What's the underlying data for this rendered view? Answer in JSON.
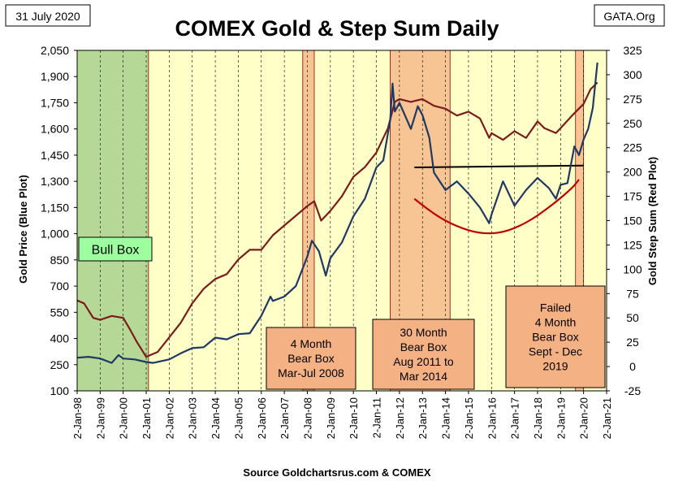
{
  "date_label": "31 July 2020",
  "site_label": "GATA.Org",
  "source_label": "Source Goldchartsrus.com & COMEX",
  "chart_data": {
    "type": "line",
    "title": "COMEX Gold & Step Sum Daily",
    "x_range": [
      1998.0,
      2021.0
    ],
    "x_ticks": [
      {
        "label": "2-Jan-98",
        "value": 1998
      },
      {
        "label": "2-Jan-99",
        "value": 1999
      },
      {
        "label": "2-Jan-00",
        "value": 2000
      },
      {
        "label": "2-Jan-01",
        "value": 2001
      },
      {
        "label": "2-Jan-02",
        "value": 2002
      },
      {
        "label": "2-Jan-03",
        "value": 2003
      },
      {
        "label": "2-Jan-04",
        "value": 2004
      },
      {
        "label": "2-Jan-05",
        "value": 2005
      },
      {
        "label": "2-Jan-06",
        "value": 2006
      },
      {
        "label": "2-Jan-07",
        "value": 2007
      },
      {
        "label": "2-Jan-08",
        "value": 2008
      },
      {
        "label": "2-Jan-09",
        "value": 2009
      },
      {
        "label": "2-Jan-10",
        "value": 2010
      },
      {
        "label": "2-Jan-11",
        "value": 2011
      },
      {
        "label": "2-Jan-12",
        "value": 2012
      },
      {
        "label": "2-Jan-13",
        "value": 2013
      },
      {
        "label": "2-Jan-14",
        "value": 2014
      },
      {
        "label": "2-Jan-15",
        "value": 2015
      },
      {
        "label": "2-Jan-16",
        "value": 2016
      },
      {
        "label": "2-Jan-17",
        "value": 2017
      },
      {
        "label": "2-Jan-18",
        "value": 2018
      },
      {
        "label": "2-Jan-19",
        "value": 2019
      },
      {
        "label": "2-Jan-20",
        "value": 2020
      },
      {
        "label": "2-Jan-21",
        "value": 2021
      }
    ],
    "y_left": {
      "label": "Gold Price    (Blue Plot)",
      "range": [
        100,
        2050
      ],
      "ticks": [
        "100",
        "250",
        "400",
        "550",
        "700",
        "850",
        "1,000",
        "1,150",
        "1,300",
        "1,450",
        "1,600",
        "1,750",
        "1,900",
        "2,050"
      ],
      "tick_values": [
        100,
        250,
        400,
        550,
        700,
        850,
        1000,
        1150,
        1300,
        1450,
        1600,
        1750,
        1900,
        2050
      ]
    },
    "y_right": {
      "label": "Gold Step Sum    (Red Plot)",
      "range": [
        -25,
        325
      ],
      "ticks": [
        "-25",
        "0",
        "25",
        "50",
        "75",
        "100",
        "125",
        "150",
        "175",
        "200",
        "225",
        "250",
        "275",
        "300",
        "325"
      ],
      "tick_values": [
        -25,
        0,
        25,
        50,
        75,
        100,
        125,
        150,
        175,
        200,
        225,
        250,
        275,
        300,
        325
      ]
    },
    "series": [
      {
        "name": "Gold Price",
        "axis": "left",
        "color": "#1f3864",
        "x": [
          1998.0,
          1998.5,
          1999.0,
          1999.5,
          1999.8,
          2000.0,
          2000.5,
          2001.0,
          2001.3,
          2002.0,
          2002.5,
          2003.0,
          2003.5,
          2004.0,
          2004.5,
          2005.0,
          2005.5,
          2006.0,
          2006.4,
          2006.5,
          2007.0,
          2007.5,
          2008.0,
          2008.2,
          2008.5,
          2008.8,
          2009.0,
          2009.5,
          2010.0,
          2010.5,
          2011.0,
          2011.3,
          2011.6,
          2011.7,
          2011.8,
          2012.0,
          2012.5,
          2012.8,
          2013.0,
          2013.3,
          2013.5,
          2014.0,
          2014.5,
          2015.0,
          2015.5,
          2015.9,
          2016.0,
          2016.5,
          2017.0,
          2017.5,
          2018.0,
          2018.5,
          2018.8,
          2019.0,
          2019.3,
          2019.6,
          2019.8,
          2020.0,
          2020.2,
          2020.4,
          2020.6
        ],
        "y": [
          290,
          295,
          285,
          260,
          305,
          285,
          280,
          265,
          260,
          280,
          315,
          345,
          350,
          405,
          395,
          425,
          430,
          530,
          640,
          615,
          640,
          700,
          870,
          960,
          900,
          760,
          860,
          950,
          1100,
          1200,
          1380,
          1420,
          1650,
          1860,
          1700,
          1750,
          1600,
          1730,
          1680,
          1550,
          1350,
          1250,
          1300,
          1230,
          1150,
          1060,
          1110,
          1300,
          1160,
          1250,
          1320,
          1260,
          1200,
          1280,
          1290,
          1500,
          1450,
          1540,
          1600,
          1720,
          1980
        ]
      },
      {
        "name": "Gold Step Sum",
        "axis": "right",
        "color": "#7b1c1c",
        "x": [
          1998.0,
          1998.3,
          1998.7,
          1999.0,
          1999.5,
          2000.0,
          2000.3,
          2000.6,
          2001.0,
          2001.5,
          2002.0,
          2002.5,
          2003.0,
          2003.5,
          2004.0,
          2004.5,
          2005.0,
          2005.5,
          2006.0,
          2006.5,
          2007.0,
          2007.5,
          2008.0,
          2008.3,
          2008.6,
          2009.0,
          2009.5,
          2010.0,
          2010.5,
          2011.0,
          2011.5,
          2011.8,
          2012.0,
          2012.5,
          2013.0,
          2013.5,
          2014.0,
          2014.5,
          2015.0,
          2015.5,
          2015.9,
          2016.0,
          2016.5,
          2017.0,
          2017.5,
          2018.0,
          2018.3,
          2018.8,
          2019.0,
          2019.5,
          2020.0,
          2020.3,
          2020.6
        ],
        "y": [
          68,
          65,
          50,
          48,
          52,
          50,
          38,
          25,
          10,
          15,
          30,
          45,
          65,
          80,
          90,
          95,
          110,
          120,
          120,
          135,
          145,
          155,
          165,
          170,
          150,
          160,
          175,
          195,
          205,
          220,
          245,
          272,
          275,
          272,
          275,
          268,
          265,
          258,
          262,
          255,
          235,
          240,
          233,
          242,
          235,
          252,
          245,
          240,
          245,
          258,
          270,
          285,
          292
        ]
      },
      {
        "name": "Support Line",
        "axis": "left",
        "color": "#000000",
        "x": [
          2012.65,
          2020.0
        ],
        "y": [
          1380,
          1390
        ]
      },
      {
        "name": "Bowl",
        "axis": "left",
        "color": "#c00000",
        "x": [
          2012.65,
          2013.5,
          2014.5,
          2015.5,
          2016.5,
          2017.5,
          2018.5,
          2019.5,
          2019.8
        ],
        "y": [
          1200,
          1110,
          1040,
          1000,
          1005,
          1060,
          1150,
          1260,
          1310
        ]
      }
    ],
    "shaded_regions": [
      {
        "name": "Bull Box",
        "start": 1998.0,
        "end": 2001.1,
        "color": "#a9d18e",
        "label_lines": [
          "Bull Box"
        ]
      },
      {
        "name": "4 Month Bear Box",
        "start": 2007.8,
        "end": 2008.3,
        "color": "#f4b183",
        "label_lines": [
          "4 Month",
          "Bear Box",
          "Mar-Jul 2008"
        ]
      },
      {
        "name": "30 Month Bear Box",
        "start": 2011.6,
        "end": 2014.2,
        "color": "#f4b183",
        "label_lines": [
          "30 Month",
          "Bear Box",
          "Aug 2011 to",
          "Mar 2014"
        ]
      },
      {
        "name": "Failed 4 Month Bear Box",
        "start": 2019.65,
        "end": 2020.0,
        "color": "#f4b183",
        "label_lines": [
          "Failed",
          "4 Month",
          "Bear Box",
          "Sept - Dec",
          "2019"
        ]
      }
    ]
  }
}
